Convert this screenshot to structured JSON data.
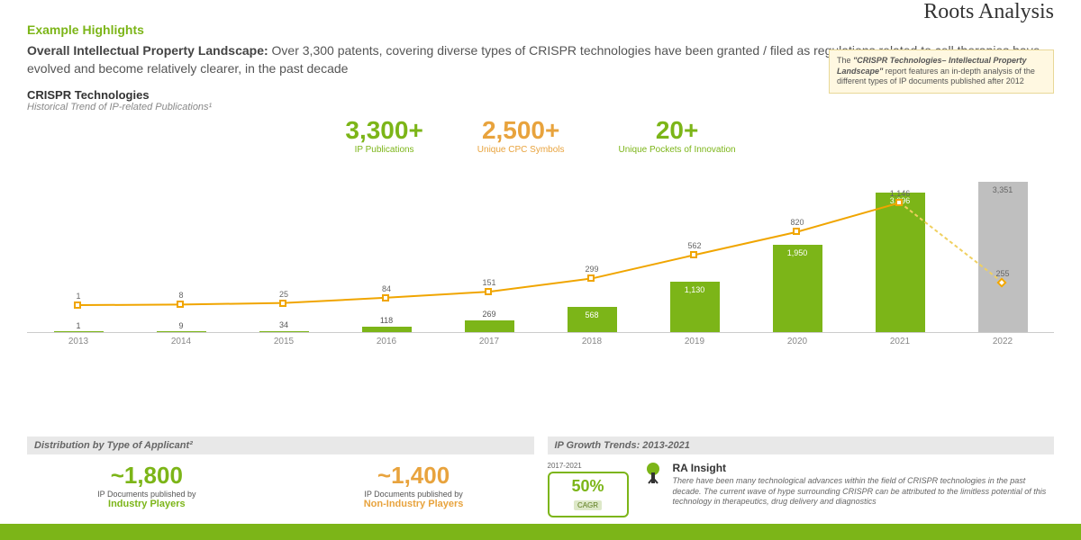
{
  "brand": "Roots Analysis",
  "section_label": "Example Highlights",
  "headline_bold": "Overall Intellectual Property Landscape:",
  "headline_rest": " Over 3,300 patents, covering diverse types of CRISPR technologies have been granted / filed as regulations related to cell therapies have evolved and become relatively clearer, in the past decade",
  "chart_title": "CRISPR Technologies",
  "chart_subtitle": "Historical Trend of IP-related Publications¹",
  "info_box_bold": "\"CRISPR Technologies– Intellectual Property Landscape\"",
  "info_box_pre": "The ",
  "info_box_post": " report features an in-depth analysis of the different types of IP documents published after 2012",
  "stats": [
    {
      "value": "3,300+",
      "label": "IP Publications",
      "cls": "gr"
    },
    {
      "value": "2,500+",
      "label": "Unique CPC Symbols",
      "cls": "or"
    },
    {
      "value": "20+",
      "label": "Unique Pockets of Innovation",
      "cls": "gr2"
    }
  ],
  "chart": {
    "type": "bar+line",
    "years": [
      "2013",
      "2014",
      "2015",
      "2016",
      "2017",
      "2018",
      "2019",
      "2020",
      "2021",
      "2022"
    ],
    "bar_values": [
      1,
      9,
      34,
      118,
      269,
      568,
      1130,
      1950,
      3096,
      3351
    ],
    "bar_labels": [
      "1",
      "9",
      "34",
      "118",
      "269",
      "568",
      "1,130",
      "1,950",
      "3,096",
      "3,351"
    ],
    "bar_colors": [
      "#7cb518",
      "#7cb518",
      "#7cb518",
      "#7cb518",
      "#7cb518",
      "#7cb518",
      "#7cb518",
      "#7cb518",
      "#7cb518",
      "#bfbfbf"
    ],
    "line_values": [
      1,
      8,
      25,
      84,
      151,
      299,
      562,
      820,
      1146,
      255
    ],
    "line_labels": [
      "1",
      "8",
      "25",
      "84",
      "151",
      "299",
      "562",
      "820",
      "1,146",
      "255"
    ],
    "line_color": "#f0a500",
    "line_color_last": "#f0d060",
    "max_bar": 3400,
    "max_line": 1300,
    "background": "#ffffff"
  },
  "panel_left": {
    "title": "Distribution by Type of Applicant²",
    "items": [
      {
        "value": "~1,800",
        "sub": "IP Documents published by",
        "who": "Industry Players",
        "cls": "gr"
      },
      {
        "value": "~1,400",
        "sub": "IP Documents published by",
        "who": "Non-Industry Players",
        "cls": "or"
      }
    ]
  },
  "panel_right": {
    "title": "IP Growth Trends: 2013-2021",
    "growth": {
      "period": "2017-2021",
      "value": "50%",
      "cagr": "CAGR"
    },
    "insight_title": "RA Insight",
    "insight_text": "There have been many technological advances within the field of CRISPR technologies in the past decade. The current wave of hype surrounding CRISPR can be attributed to the limitless potential of this technology in therapeutics, drug delivery and diagnostics"
  }
}
